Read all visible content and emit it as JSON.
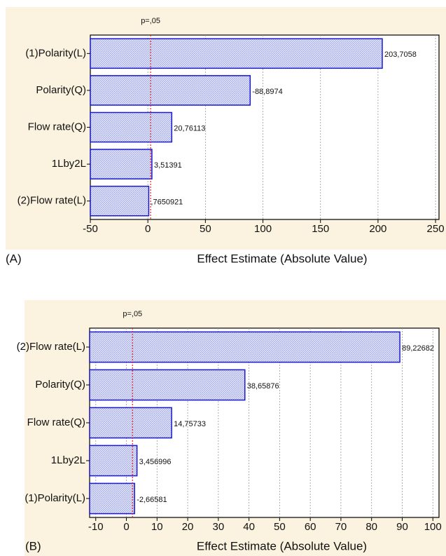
{
  "chart_data": [
    {
      "type": "pareto",
      "panel_label": "(A)",
      "x_label": "Effect Estimate (Absolute Value)",
      "categories": [
        "(1)Polarity(L)",
        "Polarity(Q)",
        "Flow rate(Q)",
        "1Lby2L",
        "(2)Flow rate(L)"
      ],
      "values": [
        203.7058,
        -88.8974,
        20.76113,
        3.51391,
        0.7650921
      ],
      "value_labels": [
        "203,7058",
        "-88,8974",
        "20,76113",
        "3,51391",
        ",7650921"
      ],
      "color": "#1a1acc",
      "xlim": [
        -50,
        253
      ],
      "xticks": [
        -50,
        0,
        50,
        100,
        150,
        200,
        250
      ],
      "grid": true,
      "reference_line": {
        "label": "p=,05",
        "value": 2.4,
        "color": "#e0202a"
      }
    },
    {
      "type": "pareto",
      "panel_label": "(B)",
      "x_label": "Effect Estimate (Absolute Value)",
      "categories": [
        "(2)Flow rate(L)",
        "Polarity(Q)",
        "Flow rate(Q)",
        "1Lby2L",
        "(1)Polarity(L)"
      ],
      "values": [
        89.22682,
        38.65876,
        14.75733,
        3.456996,
        -2.66581
      ],
      "value_labels": [
        "89,22682",
        "38,65876",
        "14,75733",
        "3,456996",
        "-2,66581"
      ],
      "color": "#1a1acc",
      "xlim": [
        -12,
        102
      ],
      "xticks": [
        -10,
        0,
        10,
        20,
        30,
        40,
        50,
        60,
        70,
        80,
        90,
        100
      ],
      "grid": true,
      "reference_line": {
        "label": "p=,05",
        "value": 2.0,
        "color": "#e0202a"
      }
    }
  ]
}
